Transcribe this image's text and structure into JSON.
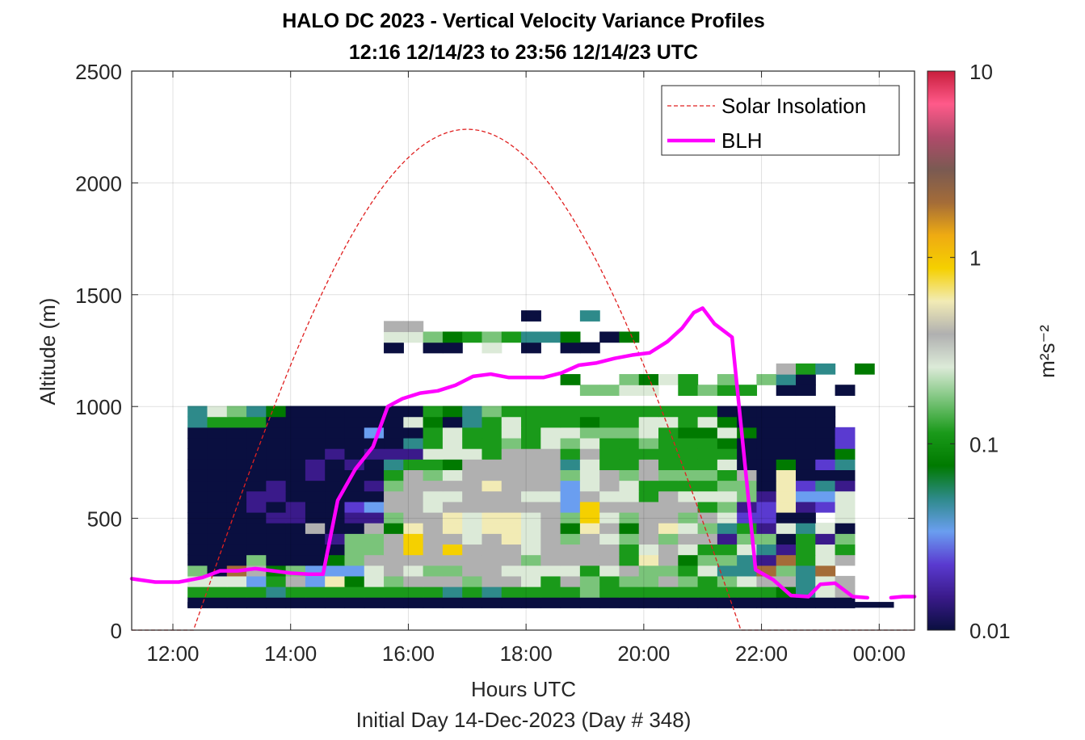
{
  "chart_data": {
    "type": "heatmap",
    "title": "HALO DC 2023 - Vertical Velocity Variance Profiles",
    "subtitle": "12:16 12/14/23 to 23:56 12/14/23  UTC",
    "xlabel": "Hours UTC",
    "xsublabel": "Initial Day 14-Dec-2023 (Day # 348)",
    "ylabel": "Altitude (m)",
    "xlim_hours": [
      11.3,
      24.6
    ],
    "ylim": [
      0,
      2500
    ],
    "x_ticks": [
      {
        "value": 12,
        "label": "12:00"
      },
      {
        "value": 14,
        "label": "14:00"
      },
      {
        "value": 16,
        "label": "16:00"
      },
      {
        "value": 18,
        "label": "18:00"
      },
      {
        "value": 20,
        "label": "20:00"
      },
      {
        "value": 22,
        "label": "22:00"
      },
      {
        "value": 24,
        "label": "00:00"
      }
    ],
    "y_ticks": [
      {
        "value": 0,
        "label": "0"
      },
      {
        "value": 500,
        "label": "500"
      },
      {
        "value": 1000,
        "label": "1000"
      },
      {
        "value": 1500,
        "label": "1500"
      },
      {
        "value": 2000,
        "label": "2000"
      },
      {
        "value": 2500,
        "label": "2500"
      }
    ],
    "grid": true,
    "colorbar": {
      "scale": "log",
      "range": [
        0.01,
        10
      ],
      "label": "m²s⁻²",
      "ticks": [
        {
          "value": 0.01,
          "label": "0.01"
        },
        {
          "value": 0.1,
          "label": "0.1"
        },
        {
          "value": 1,
          "label": "1"
        },
        {
          "value": 10,
          "label": "10"
        }
      ],
      "stops": [
        "#0a0f40",
        "#3a1a8a",
        "#5a3ad0",
        "#6a9ef0",
        "#2e8a8a",
        "#007a00",
        "#1a9a1a",
        "#7ac47a",
        "#dcead8",
        "#b0b0b0",
        "#f2ebb5",
        "#f5d000",
        "#efab12",
        "#a46c38",
        "#7a5a52",
        "#b04a6a",
        "#ff5a8a",
        "#c81e3c"
      ]
    },
    "legend": {
      "placement": "top-right",
      "entries": [
        {
          "name": "Solar Insolation",
          "style": "dashed",
          "color": "#e02020"
        },
        {
          "name": "BLH",
          "style": "solid",
          "color": "#ff00ff"
        }
      ]
    },
    "solar_insolation": {
      "sunrise_hours": 12.35,
      "noon_hours": 17.05,
      "sunset_hours": 21.65,
      "peak_m": 2240
    },
    "blh": {
      "x_hours": [
        11.3,
        11.7,
        12.1,
        12.5,
        12.8,
        13.1,
        13.4,
        13.7,
        14.0,
        14.3,
        14.55,
        14.8,
        15.1,
        15.4,
        15.65,
        15.9,
        16.2,
        16.5,
        16.8,
        17.1,
        17.4,
        17.7,
        18.0,
        18.3,
        18.6,
        18.9,
        19.2,
        19.5,
        19.8,
        20.1,
        20.4,
        20.65,
        20.85,
        21.0,
        21.2,
        21.5,
        21.9,
        22.2,
        22.5,
        22.8,
        23.0,
        23.25,
        23.55,
        23.8,
        24.0,
        24.2,
        24.4,
        24.6
      ],
      "y_m": [
        230,
        215,
        215,
        235,
        265,
        265,
        275,
        265,
        255,
        250,
        250,
        580,
        720,
        820,
        1000,
        1035,
        1060,
        1070,
        1095,
        1135,
        1145,
        1130,
        1130,
        1130,
        1150,
        1185,
        1195,
        1215,
        1230,
        1240,
        1290,
        1350,
        1420,
        1440,
        1370,
        1310,
        270,
        225,
        155,
        150,
        205,
        210,
        150,
        145,
        145,
        145,
        150,
        150
      ],
      "gaps_after_hours": [
        23.8,
        24.0
      ]
    },
    "heatmap_grid": {
      "x_start_hours": 12.25,
      "x_step_hours": 0.3333,
      "y_start_m": 100,
      "y_step_m": 47.5,
      "rows_bottom_to_top": [
        "2222222222222222222222222222222222",
        "88886888888886868888988888888876ab",
        "aaa58b5c7a9bbb9bba8b9899b989abb6ab",
        "92fb79555aba99bbaaaa8ab998a66f96f",
        "222922279bbbbbbbb9bbbb8cb79963f8ab",
        "2222222299bdbdbbbabbbb8aba88a638a8",
        "2222222399bdbbabcab9ba9b9bb3992839",
        "222222b22b7cbcaccab7cb7bca9683a6a2",
        "22223322339bbcaccab9da9bb9ba44221a",
        "2223232245bbabbbbbb5dbbbbb8934c34a",
        "2223322222bbaabbbaa5baa8baaa93c55a",
        "22223222239bbbbcbbb5aba8888992c463",
        "22222232228b9abbbbb9ab9b9998b2c222",
        "22222232326887bbbbb6a88b888a227246",
        "222222232333aaa8bbb8b8888888222227",
        "2222222222268a8898a9a8898887222224",
        "2222222225228a88a8aa999a877a722224",
        "68882222222a7268a888788aa8a722222",
        "6a9672222222876988888888888222222",
        "",
        "                    99aa 8988 22 2",
        "                   7  97a8 9 962",
        "                              b86 7",
        "",
        "          2 22 a 2 22",
        "          aa97898667 27",
        "          bb ",
        "                 2  6"
      ]
    }
  }
}
